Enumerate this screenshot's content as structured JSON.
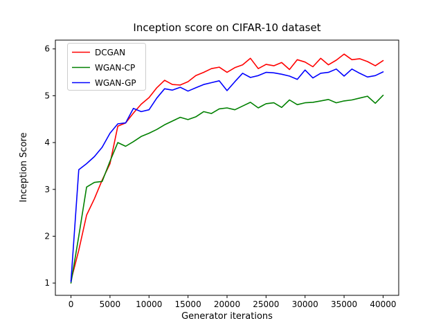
{
  "chart_data": {
    "type": "line",
    "title": "Inception score on CIFAR-10 dataset",
    "xlabel": "Generator iterations",
    "ylabel": "Inception Score",
    "x_range": [
      -2000,
      42000
    ],
    "y_range": [
      0.737,
      6.188
    ],
    "x_ticks": [
      0,
      5000,
      10000,
      15000,
      20000,
      25000,
      30000,
      35000,
      40000
    ],
    "y_ticks": [
      1,
      2,
      3,
      4,
      5,
      6
    ],
    "grid": false,
    "legend_position": "upper left",
    "x": [
      0,
      1000,
      2000,
      3000,
      4000,
      5000,
      6000,
      7000,
      8000,
      9000,
      10000,
      11000,
      12000,
      13000,
      14000,
      15000,
      16000,
      17000,
      18000,
      19000,
      20000,
      21000,
      22000,
      23000,
      24000,
      25000,
      26000,
      27000,
      28000,
      29000,
      30000,
      31000,
      32000,
      33000,
      34000,
      35000,
      36000,
      37000,
      38000,
      39000,
      40000
    ],
    "series": [
      {
        "name": "DCGAN",
        "color": "#ff0000",
        "values": [
          1.05,
          1.7,
          2.45,
          2.8,
          3.2,
          3.55,
          4.35,
          4.42,
          4.63,
          4.82,
          4.96,
          5.17,
          5.33,
          5.24,
          5.23,
          5.3,
          5.43,
          5.5,
          5.58,
          5.61,
          5.5,
          5.6,
          5.66,
          5.8,
          5.58,
          5.67,
          5.64,
          5.71,
          5.56,
          5.77,
          5.72,
          5.62,
          5.8,
          5.66,
          5.76,
          5.89,
          5.77,
          5.79,
          5.73,
          5.64,
          5.75
        ]
      },
      {
        "name": "WGAN-CP",
        "color": "#008000",
        "values": [
          1.0,
          2.0,
          3.05,
          3.15,
          3.17,
          3.6,
          4.0,
          3.92,
          4.02,
          4.13,
          4.2,
          4.28,
          4.38,
          4.46,
          4.54,
          4.49,
          4.55,
          4.66,
          4.62,
          4.72,
          4.74,
          4.7,
          4.78,
          4.86,
          4.74,
          4.83,
          4.85,
          4.75,
          4.91,
          4.81,
          4.85,
          4.86,
          4.89,
          4.92,
          4.85,
          4.89,
          4.91,
          4.95,
          4.99,
          4.84,
          5.01
        ]
      },
      {
        "name": "WGAN-GP",
        "color": "#0000ff",
        "values": [
          1.03,
          3.42,
          3.55,
          3.7,
          3.9,
          4.2,
          4.4,
          4.42,
          4.73,
          4.66,
          4.7,
          4.95,
          5.15,
          5.12,
          5.18,
          5.1,
          5.17,
          5.24,
          5.28,
          5.32,
          5.11,
          5.3,
          5.48,
          5.39,
          5.43,
          5.5,
          5.49,
          5.46,
          5.42,
          5.35,
          5.55,
          5.38,
          5.48,
          5.5,
          5.57,
          5.42,
          5.57,
          5.48,
          5.4,
          5.43,
          5.51
        ]
      }
    ]
  },
  "colors": {
    "background": "#ffffff",
    "text": "#000000",
    "spine": "#000000",
    "legend_border": "#cccccc",
    "legend_background": "#ffffff"
  }
}
